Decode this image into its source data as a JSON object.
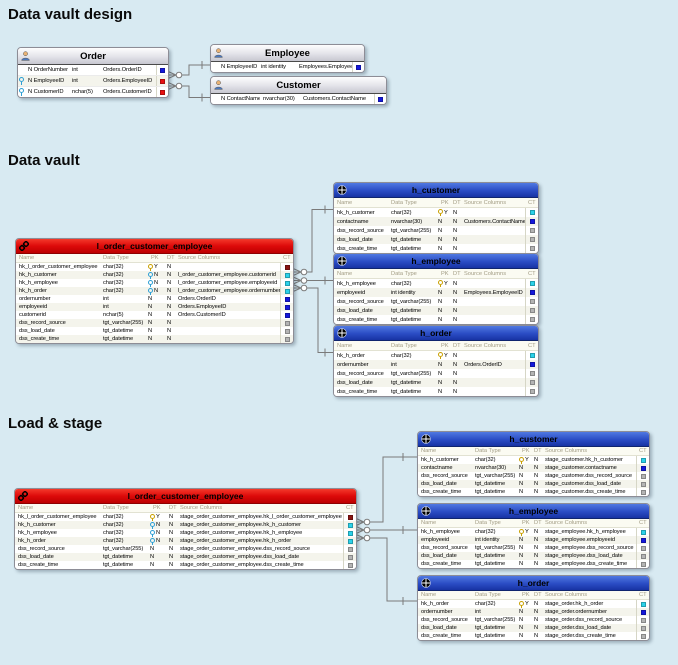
{
  "sections": {
    "design": {
      "heading": "Data vault design"
    },
    "vault": {
      "heading": "Data vault"
    },
    "load_stage": {
      "heading": "Load & stage"
    }
  },
  "column_headers": [
    "Name",
    "Data Type",
    "PK",
    "DT",
    "Source Columns",
    "CT"
  ],
  "ct_colors": {
    "maroon": "#8a1410",
    "cyan": "#2bd2ea",
    "blue": "#1518dc",
    "gray": "#b4b4b4",
    "red": "#e81010"
  },
  "tables": {
    "d_order": {
      "title": "Order",
      "kind": "source",
      "rows": [
        [
          "",
          "N OrderNumber",
          "int",
          "",
          "",
          "Orders.OrderID",
          "blue"
        ],
        [
          "b",
          "N EmployeeID",
          "int",
          "",
          "",
          "Orders.EmployeeID",
          "red"
        ],
        [
          "b",
          "N CustomerID",
          "nchar(5)",
          "",
          "",
          "Orders.CustomerID",
          "red"
        ]
      ]
    },
    "d_employee": {
      "title": "Employee",
      "kind": "source",
      "rows": [
        [
          "",
          "N EmployeeID",
          "int identity",
          "",
          "",
          "Employees.EmployeeID",
          "blue"
        ]
      ]
    },
    "d_customer": {
      "title": "Customer",
      "kind": "source",
      "rows": [
        [
          "",
          "N ContactName",
          "nvarchar(30)",
          "",
          "",
          "Customers.ContactName",
          "blue"
        ]
      ]
    },
    "v_link": {
      "title": "l_order_customer_employee",
      "kind": "link",
      "rows": [
        [
          "y",
          "hk_l_order_customer_employee",
          "char(32)",
          "Y",
          "N",
          "",
          "maroon"
        ],
        [
          "b",
          "hk_h_customer",
          "char(32)",
          "N",
          "N",
          "l_order_customer_employee.customerid",
          "cyan"
        ],
        [
          "b",
          "hk_h_employee",
          "char(32)",
          "N",
          "N",
          "l_order_customer_employee.employeeid",
          "cyan"
        ],
        [
          "b",
          "hk_h_order",
          "char(32)",
          "N",
          "N",
          "l_order_customer_employee.ordernumber",
          "cyan"
        ],
        [
          "",
          "ordernumber",
          "int",
          "N",
          "N",
          "Orders.OrderID",
          "blue"
        ],
        [
          "",
          "employeeid",
          "int",
          "N",
          "N",
          "Orders.EmployeeID",
          "blue"
        ],
        [
          "",
          "customerid",
          "nchar(5)",
          "N",
          "N",
          "Orders.CustomerID",
          "blue"
        ],
        [
          "",
          "dss_record_source",
          "tgt_varchar(255)",
          "N",
          "N",
          "",
          "gray"
        ],
        [
          "",
          "dss_load_date",
          "tgt_datetime",
          "N",
          "N",
          "",
          "gray"
        ],
        [
          "",
          "dss_create_time",
          "tgt_datetime",
          "N",
          "N",
          "",
          "gray"
        ]
      ]
    },
    "v_hcust": {
      "title": "h_customer",
      "kind": "hub",
      "rows": [
        [
          "y",
          "hk_h_customer",
          "char(32)",
          "Y",
          "N",
          "",
          "cyan"
        ],
        [
          "",
          "contactname",
          "nvarchar(30)",
          "N",
          "N",
          "Customers.ContactName",
          "blue"
        ],
        [
          "",
          "dss_record_source",
          "tgt_varchar(255)",
          "N",
          "N",
          "",
          "gray"
        ],
        [
          "",
          "dss_load_date",
          "tgt_datetime",
          "N",
          "N",
          "",
          "gray"
        ],
        [
          "",
          "dss_create_time",
          "tgt_datetime",
          "N",
          "N",
          "",
          "gray"
        ]
      ]
    },
    "v_hemp": {
      "title": "h_employee",
      "kind": "hub",
      "rows": [
        [
          "y",
          "hk_h_employee",
          "char(32)",
          "Y",
          "N",
          "",
          "cyan"
        ],
        [
          "",
          "employeeid",
          "int identity",
          "N",
          "N",
          "Employees.EmployeeID",
          "blue"
        ],
        [
          "",
          "dss_record_source",
          "tgt_varchar(255)",
          "N",
          "N",
          "",
          "gray"
        ],
        [
          "",
          "dss_load_date",
          "tgt_datetime",
          "N",
          "N",
          "",
          "gray"
        ],
        [
          "",
          "dss_create_time",
          "tgt_datetime",
          "N",
          "N",
          "",
          "gray"
        ]
      ]
    },
    "v_hord": {
      "title": "h_order",
      "kind": "hub",
      "rows": [
        [
          "y",
          "hk_h_order",
          "char(32)",
          "Y",
          "N",
          "",
          "cyan"
        ],
        [
          "",
          "ordernumber",
          "int",
          "N",
          "N",
          "Orders.OrderID",
          "blue"
        ],
        [
          "",
          "dss_record_source",
          "tgt_varchar(255)",
          "N",
          "N",
          "",
          "gray"
        ],
        [
          "",
          "dss_load_date",
          "tgt_datetime",
          "N",
          "N",
          "",
          "gray"
        ],
        [
          "",
          "dss_create_time",
          "tgt_datetime",
          "N",
          "N",
          "",
          "gray"
        ]
      ]
    },
    "s_link": {
      "title": "l_order_customer_employee",
      "kind": "link",
      "rows": [
        [
          "y",
          "hk_l_order_customer_employee",
          "char(32)",
          "Y",
          "N",
          "stage_order_customer_employee.hk_l_order_customer_employee",
          "maroon"
        ],
        [
          "b",
          "hk_h_customer",
          "char(32)",
          "N",
          "N",
          "stage_order_customer_employee.hk_h_customer",
          "cyan"
        ],
        [
          "b",
          "hk_h_employee",
          "char(32)",
          "N",
          "N",
          "stage_order_customer_employee.hk_h_employee",
          "cyan"
        ],
        [
          "b",
          "hk_h_order",
          "char(32)",
          "N",
          "N",
          "stage_order_customer_employee.hk_h_order",
          "cyan"
        ],
        [
          "",
          "dss_record_source",
          "tgt_varchar(255)",
          "N",
          "N",
          "stage_order_customer_employee.dss_record_source",
          "gray"
        ],
        [
          "",
          "dss_load_date",
          "tgt_datetime",
          "N",
          "N",
          "stage_order_customer_employee.dss_load_date",
          "gray"
        ],
        [
          "",
          "dss_create_time",
          "tgt_datetime",
          "N",
          "N",
          "stage_order_customer_employee.dss_create_time",
          "gray"
        ]
      ]
    },
    "s_hcust": {
      "title": "h_customer",
      "kind": "hub",
      "rows": [
        [
          "y",
          "hk_h_customer",
          "char(32)",
          "Y",
          "N",
          "stage_customer.hk_h_customer",
          "cyan"
        ],
        [
          "",
          "contactname",
          "nvarchar(30)",
          "N",
          "N",
          "stage_customer.contactname",
          "blue"
        ],
        [
          "",
          "dss_record_source",
          "tgt_varchar(255)",
          "N",
          "N",
          "stage_customer.dss_record_source",
          "gray"
        ],
        [
          "",
          "dss_load_date",
          "tgt_datetime",
          "N",
          "N",
          "stage_customer.dss_load_date",
          "gray"
        ],
        [
          "",
          "dss_create_time",
          "tgt_datetime",
          "N",
          "N",
          "stage_customer.dss_create_time",
          "gray"
        ]
      ]
    },
    "s_hemp": {
      "title": "h_employee",
      "kind": "hub",
      "rows": [
        [
          "y",
          "hk_h_employee",
          "char(32)",
          "Y",
          "N",
          "stage_employee.hk_h_employee",
          "cyan"
        ],
        [
          "",
          "employeeid",
          "int identity",
          "N",
          "N",
          "stage_employee.employeeid",
          "blue"
        ],
        [
          "",
          "dss_record_source",
          "tgt_varchar(255)",
          "N",
          "N",
          "stage_employee.dss_record_source",
          "gray"
        ],
        [
          "",
          "dss_load_date",
          "tgt_datetime",
          "N",
          "N",
          "stage_employee.dss_load_date",
          "gray"
        ],
        [
          "",
          "dss_create_time",
          "tgt_datetime",
          "N",
          "N",
          "stage_employee.dss_create_time",
          "gray"
        ]
      ]
    },
    "s_hord": {
      "title": "h_order",
      "kind": "hub",
      "rows": [
        [
          "y",
          "hk_h_order",
          "char(32)",
          "Y",
          "N",
          "stage_order.hk_h_order",
          "cyan"
        ],
        [
          "",
          "ordernumber",
          "int",
          "N",
          "N",
          "stage_order.ordernumber",
          "blue"
        ],
        [
          "",
          "dss_record_source",
          "tgt_varchar(255)",
          "N",
          "N",
          "stage_order.dss_record_source",
          "gray"
        ],
        [
          "",
          "dss_load_date",
          "tgt_datetime",
          "N",
          "N",
          "stage_order.dss_load_date",
          "gray"
        ],
        [
          "",
          "dss_create_time",
          "tgt_datetime",
          "N",
          "N",
          "stage_order.dss_create_time",
          "gray"
        ]
      ]
    }
  }
}
